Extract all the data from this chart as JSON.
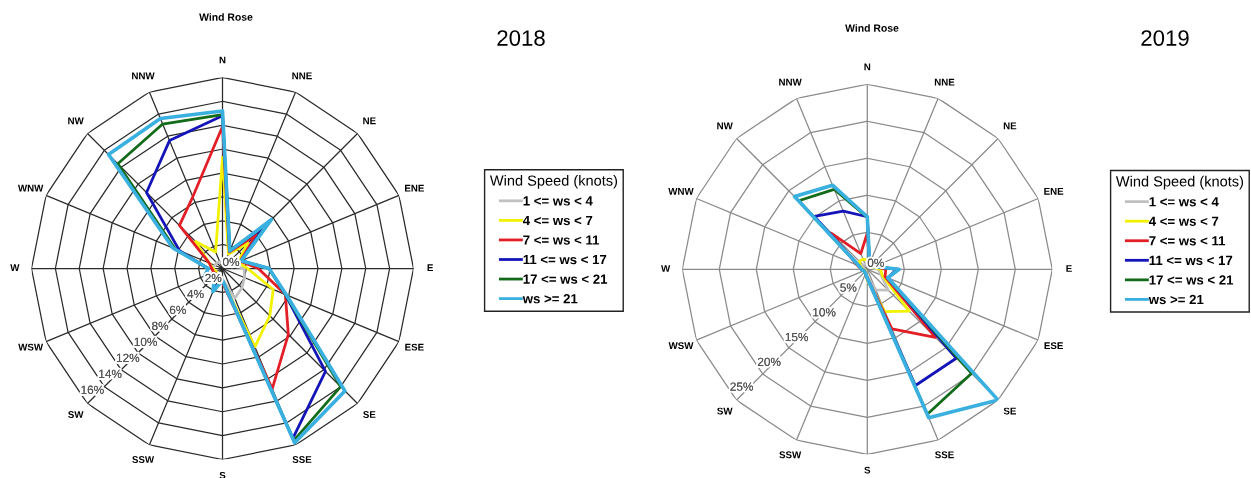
{
  "chart_data": [
    {
      "type": "radar",
      "title": "Wind Rose",
      "subtitle": "2018",
      "categories": [
        "N",
        "NNE",
        "NE",
        "ENE",
        "E",
        "ESE",
        "SE",
        "SSE",
        "S",
        "SSW",
        "SW",
        "WSW",
        "W",
        "WNW",
        "NW",
        "NNW"
      ],
      "series": [
        {
          "name": "1 <= ws < 4",
          "color": "#c0c0c0",
          "values": [
            0.4,
            0.4,
            0.5,
            0.8,
            1.8,
            2.0,
            2.3,
            2.7,
            0.9,
            0.5,
            0.5,
            0.6,
            0.8,
            0.7,
            0.7,
            0.6
          ]
        },
        {
          "name": "4 <= ws < 7",
          "color": "#f2f200",
          "values": [
            9.3,
            1.3,
            3.0,
            1.4,
            2.1,
            4.6,
            5.6,
            7.1,
            1.0,
            0.6,
            0.6,
            0.6,
            0.8,
            1.2,
            3.2,
            1.5
          ]
        },
        {
          "name": "7 <= ws < 11",
          "color": "#e21f26",
          "values": [
            11.9,
            1.5,
            4.0,
            1.6,
            3.0,
            5.7,
            7.8,
            10.9,
            1.2,
            0.8,
            0.7,
            0.8,
            0.9,
            1.2,
            5.1,
            6.5
          ]
        },
        {
          "name": "11 <= ws < 17",
          "color": "#1414b8",
          "values": [
            12.8,
            1.6,
            5.0,
            1.7,
            3.9,
            5.7,
            12.2,
            15.4,
            1.0,
            1.9,
            0.9,
            1.5,
            1.2,
            3.9,
            9.0,
            11.6
          ]
        },
        {
          "name": "17 <= ws < 21",
          "color": "#136b1a",
          "values": [
            12.9,
            1.6,
            5.5,
            1.7,
            3.9,
            5.7,
            14.0,
            15.6,
            1.0,
            2.0,
            0.9,
            1.6,
            1.2,
            4.3,
            12.4,
            13.1
          ]
        },
        {
          "name": "ws >= 21",
          "color": "#3ab0e0",
          "values": [
            13.2,
            1.6,
            5.8,
            1.7,
            3.9,
            5.8,
            14.5,
            15.8,
            1.0,
            2.1,
            0.9,
            1.6,
            1.2,
            4.5,
            13.5,
            13.6
          ]
        }
      ],
      "ylim": [
        0,
        16
      ],
      "yticks": [
        {
          "value": 0,
          "label": "0%"
        },
        {
          "value": 2,
          "label": "2%"
        },
        {
          "value": 4,
          "label": "4%"
        },
        {
          "value": 6,
          "label": "6%"
        },
        {
          "value": 8,
          "label": "8%"
        },
        {
          "value": 10,
          "label": "10%"
        },
        {
          "value": 12,
          "label": "12%"
        },
        {
          "value": 14,
          "label": "14%"
        },
        {
          "value": 16,
          "label": "16%"
        }
      ],
      "legend": "right",
      "legend_title": "Wind Speed (knots)",
      "grid": true
    },
    {
      "type": "radar",
      "title": "Wind Rose",
      "subtitle": "2019",
      "categories": [
        "N",
        "NNE",
        "NE",
        "ENE",
        "E",
        "ESE",
        "SE",
        "SSE",
        "S",
        "SSW",
        "SW",
        "WSW",
        "W",
        "WNW",
        "NW",
        "NNW"
      ],
      "series": [
        {
          "name": "1 <= ws < 4",
          "color": "#c0c0c0",
          "values": [
            0.6,
            0.4,
            0.4,
            0.6,
            1.5,
            2.0,
            4.0,
            3.0,
            1.0,
            0.4,
            0.3,
            0.3,
            0.4,
            0.6,
            0.8,
            0.8
          ]
        },
        {
          "name": "4 <= ws < 7",
          "color": "#f2f200",
          "values": [
            1.2,
            0.5,
            0.5,
            0.8,
            1.8,
            2.2,
            8.0,
            6.2,
            1.5,
            0.5,
            0.4,
            0.4,
            0.6,
            1.0,
            1.5,
            1.5
          ]
        },
        {
          "name": "7 <= ws < 11",
          "color": "#e21f26",
          "values": [
            4.9,
            0.8,
            0.6,
            1.0,
            2.5,
            2.6,
            13.0,
            8.7,
            1.2,
            0.6,
            0.5,
            0.5,
            0.8,
            1.5,
            6.9,
            2.3
          ]
        },
        {
          "name": "11 <= ws < 17",
          "color": "#1414b8",
          "values": [
            7.1,
            0.8,
            0.6,
            1.0,
            4.0,
            3.0,
            17.0,
            17.0,
            1.2,
            0.6,
            0.5,
            0.5,
            0.8,
            1.2,
            10.1,
            8.5
          ]
        },
        {
          "name": "17 <= ws < 21",
          "color": "#136b1a",
          "values": [
            7.0,
            0.8,
            0.6,
            1.0,
            4.2,
            3.0,
            19.9,
            21.2,
            1.2,
            0.6,
            0.5,
            0.5,
            0.8,
            1.2,
            13.1,
            11.7
          ]
        },
        {
          "name": "ws >= 21",
          "color": "#3ab0e0",
          "values": [
            7.1,
            0.8,
            0.6,
            1.0,
            4.3,
            3.0,
            25.0,
            21.7,
            1.2,
            0.6,
            0.5,
            0.5,
            0.8,
            1.2,
            13.9,
            12.3
          ]
        }
      ],
      "ylim": [
        0,
        25
      ],
      "yticks": [
        {
          "value": 0,
          "label": "0%"
        },
        {
          "value": 5,
          "label": "5%"
        },
        {
          "value": 10,
          "label": "10%"
        },
        {
          "value": 15,
          "label": "15%"
        },
        {
          "value": 20,
          "label": "20%"
        },
        {
          "value": 25,
          "label": "25%"
        }
      ],
      "legend": "right",
      "legend_title": "Wind Speed (knots)",
      "grid": true
    }
  ]
}
